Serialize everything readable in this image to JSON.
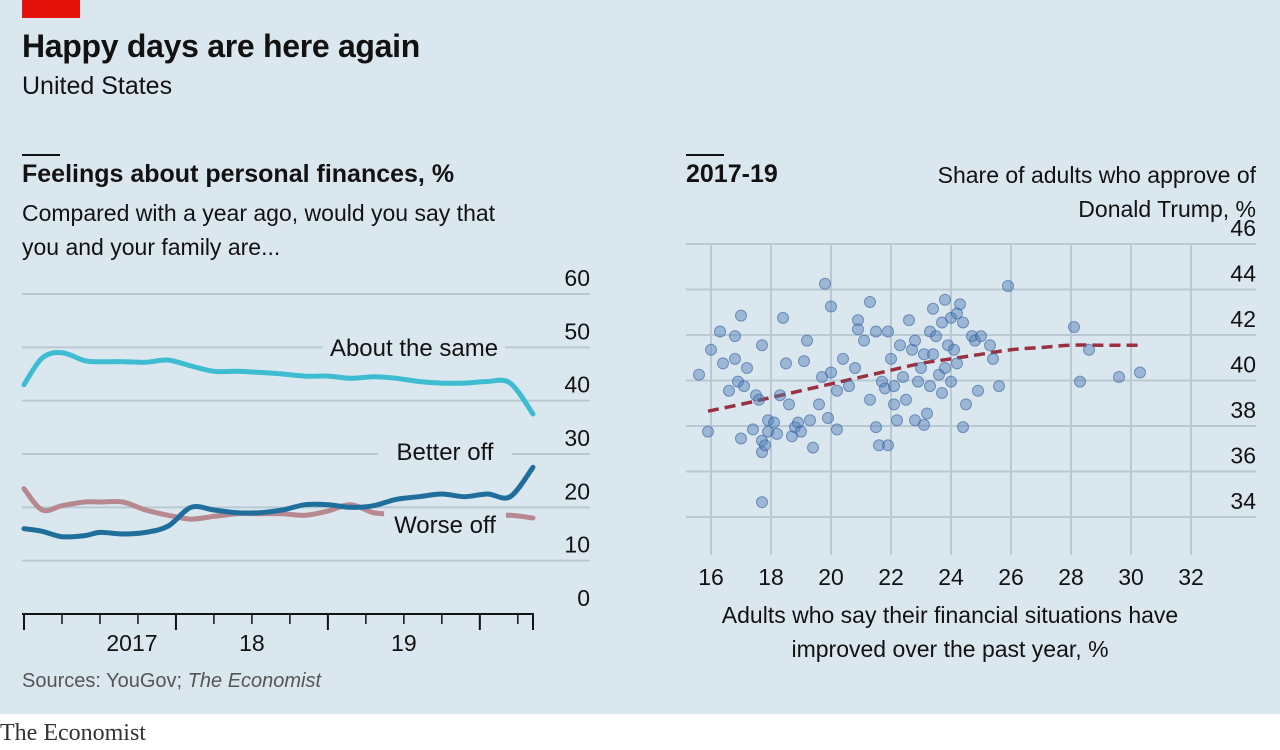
{
  "title": "Happy days are here again",
  "subtitle": "United States",
  "colors": {
    "background": "#dbe7ee",
    "accent": "#e3120b",
    "about_same": "#3ebcd2",
    "better_off": "#1f6e9c",
    "worse_off": "#b7888f",
    "scatter_point": "#4f7cb8",
    "trend": "#9b3040",
    "grid": "#b9c9d3"
  },
  "left_panel": {
    "heading": "Feelings about personal finances, %",
    "description": "Compared with a year ago, would you say that you and your family are..."
  },
  "right_panel": {
    "heading": "2017-19",
    "ylabel": "Share of adults who approve of Donald Trump, %",
    "xlabel": "Adults who say their financial situations have improved over the past year, %"
  },
  "source_prefix": "Sources: YouGov; ",
  "source_italic": "The Economist",
  "brand": "The Economist",
  "chart_data": [
    {
      "type": "line",
      "title": "Feelings about personal finances, %",
      "subtitle": "Compared with a year ago, would you say that you and your family are...",
      "ylim": [
        0,
        60
      ],
      "yticks": [
        "60",
        "50",
        "40",
        "30",
        "20",
        "10",
        "0"
      ],
      "xticks": [
        {
          "label": "2017",
          "x": 2017.25
        },
        {
          "label": "18",
          "x": 2018.0
        },
        {
          "label": "19",
          "x": 2019.0
        }
      ],
      "xlim": [
        2016.5,
        2019.85
      ],
      "grid": true,
      "series": [
        {
          "name": "About the same",
          "color": "#3ebcd2",
          "x": [
            2016.5,
            2016.62,
            2016.75,
            2016.9,
            2017.0,
            2017.15,
            2017.3,
            2017.45,
            2017.6,
            2017.75,
            2017.9,
            2018.05,
            2018.2,
            2018.35,
            2018.5,
            2018.65,
            2018.8,
            2018.95,
            2019.1,
            2019.25,
            2019.4,
            2019.55,
            2019.7,
            2019.85
          ],
          "values": [
            43,
            48,
            49,
            47.5,
            47.3,
            47.3,
            47.2,
            47.6,
            46.5,
            45.5,
            45.5,
            45.3,
            45,
            44.6,
            44.6,
            44.2,
            44.5,
            44.2,
            43.6,
            43.3,
            43.3,
            43.6,
            43.3,
            37.5
          ]
        },
        {
          "name": "Better off",
          "color": "#1f6e9c",
          "x": [
            2016.5,
            2016.62,
            2016.75,
            2016.9,
            2017.0,
            2017.15,
            2017.3,
            2017.45,
            2017.6,
            2017.75,
            2017.9,
            2018.05,
            2018.2,
            2018.35,
            2018.5,
            2018.65,
            2018.8,
            2018.95,
            2019.1,
            2019.25,
            2019.4,
            2019.55,
            2019.7,
            2019.85
          ],
          "values": [
            16,
            15.5,
            14.5,
            14.7,
            15.3,
            15,
            15.3,
            16.5,
            20,
            19.5,
            19,
            19,
            19.5,
            20.5,
            20.5,
            20,
            20.3,
            21.5,
            22,
            22.5,
            22,
            22.5,
            22,
            27.5
          ]
        },
        {
          "name": "Worse off",
          "color": "#b7888f",
          "x": [
            2016.5,
            2016.62,
            2016.75,
            2016.9,
            2017.0,
            2017.15,
            2017.3,
            2017.45,
            2017.6,
            2017.75,
            2017.9,
            2018.05,
            2018.2,
            2018.35,
            2018.5,
            2018.65,
            2018.8,
            2018.95,
            2019.1,
            2019.25,
            2019.4,
            2019.55,
            2019.7,
            2019.85
          ],
          "values": [
            23.5,
            19.5,
            20.3,
            21,
            21,
            21,
            19.5,
            18.5,
            17.8,
            18.3,
            18.8,
            18.8,
            18.8,
            18.5,
            19.3,
            20.5,
            19,
            18.7,
            18.3,
            18.2,
            18.2,
            18.3,
            18.5,
            18
          ]
        }
      ],
      "annotations": [
        "About the same",
        "Better off",
        "Worse off"
      ]
    },
    {
      "type": "scatter",
      "title": "2017-19",
      "xlabel": "Adults who say their financial situations have improved over the past year, %",
      "ylabel": "Share of adults who approve of Donald Trump, %",
      "xlim": [
        15,
        33
      ],
      "ylim": [
        33,
        46.5
      ],
      "xticks": [
        "16",
        "18",
        "20",
        "22",
        "24",
        "26",
        "28",
        "30",
        "32"
      ],
      "yticks": [
        "46",
        "44",
        "42",
        "40",
        "38",
        "36",
        "34"
      ],
      "grid": true,
      "trend": {
        "style": "dashed",
        "x": [
          15.9,
          17,
          18,
          19,
          20,
          21,
          22,
          23,
          24,
          25,
          26,
          27,
          28,
          29,
          30.3
        ],
        "y": [
          38.3,
          38.6,
          38.9,
          39.2,
          39.5,
          39.8,
          40.1,
          40.4,
          40.6,
          40.8,
          41.0,
          41.1,
          41.2,
          41.2,
          41.2
        ]
      },
      "points": [
        [
          15.6,
          39.9
        ],
        [
          16.0,
          41.0
        ],
        [
          15.9,
          37.4
        ],
        [
          16.3,
          41.8
        ],
        [
          16.4,
          40.4
        ],
        [
          16.6,
          39.2
        ],
        [
          16.8,
          41.6
        ],
        [
          16.8,
          40.6
        ],
        [
          17.0,
          42.5
        ],
        [
          16.9,
          39.6
        ],
        [
          17.0,
          37.1
        ],
        [
          17.1,
          39.4
        ],
        [
          17.2,
          40.2
        ],
        [
          17.4,
          37.5
        ],
        [
          17.5,
          39.0
        ],
        [
          17.7,
          41.2
        ],
        [
          17.6,
          38.8
        ],
        [
          17.7,
          37.0
        ],
        [
          17.9,
          37.4
        ],
        [
          17.9,
          37.9
        ],
        [
          17.7,
          36.5
        ],
        [
          17.8,
          36.8
        ],
        [
          17.7,
          34.3
        ],
        [
          18.2,
          37.3
        ],
        [
          18.1,
          37.8
        ],
        [
          18.3,
          39.0
        ],
        [
          18.4,
          42.4
        ],
        [
          18.6,
          38.6
        ],
        [
          18.5,
          40.4
        ],
        [
          18.7,
          37.2
        ],
        [
          18.8,
          37.6
        ],
        [
          18.9,
          37.8
        ],
        [
          19.0,
          37.4
        ],
        [
          19.1,
          40.5
        ],
        [
          19.2,
          41.4
        ],
        [
          19.3,
          37.9
        ],
        [
          19.4,
          36.7
        ],
        [
          19.6,
          38.6
        ],
        [
          19.7,
          39.8
        ],
        [
          19.8,
          43.9
        ],
        [
          20.0,
          40.0
        ],
        [
          19.9,
          38.0
        ],
        [
          20.0,
          42.9
        ],
        [
          20.2,
          39.2
        ],
        [
          20.2,
          37.5
        ],
        [
          20.4,
          40.6
        ],
        [
          20.6,
          39.4
        ],
        [
          20.8,
          40.2
        ],
        [
          20.9,
          42.3
        ],
        [
          20.9,
          41.9
        ],
        [
          21.1,
          41.4
        ],
        [
          21.3,
          43.1
        ],
        [
          21.3,
          38.8
        ],
        [
          21.5,
          41.8
        ],
        [
          21.5,
          37.6
        ],
        [
          21.6,
          36.8
        ],
        [
          21.7,
          39.6
        ],
        [
          21.8,
          39.3
        ],
        [
          21.9,
          41.8
        ],
        [
          21.9,
          36.8
        ],
        [
          22.0,
          40.6
        ],
        [
          22.1,
          39.4
        ],
        [
          22.1,
          38.6
        ],
        [
          22.2,
          37.9
        ],
        [
          22.3,
          41.2
        ],
        [
          22.4,
          39.8
        ],
        [
          22.5,
          38.8
        ],
        [
          22.6,
          42.3
        ],
        [
          22.7,
          41.0
        ],
        [
          22.8,
          41.4
        ],
        [
          22.8,
          37.9
        ],
        [
          22.9,
          39.6
        ],
        [
          23.0,
          40.2
        ],
        [
          23.1,
          40.8
        ],
        [
          23.1,
          37.7
        ],
        [
          23.2,
          38.2
        ],
        [
          23.3,
          41.8
        ],
        [
          23.3,
          39.4
        ],
        [
          23.4,
          42.8
        ],
        [
          23.4,
          40.8
        ],
        [
          23.5,
          41.6
        ],
        [
          23.6,
          39.9
        ],
        [
          23.7,
          39.1
        ],
        [
          23.7,
          42.2
        ],
        [
          23.8,
          43.2
        ],
        [
          23.8,
          40.2
        ],
        [
          23.9,
          41.2
        ],
        [
          24.0,
          42.4
        ],
        [
          24.0,
          39.6
        ],
        [
          24.1,
          41.0
        ],
        [
          24.2,
          42.6
        ],
        [
          24.2,
          40.4
        ],
        [
          24.3,
          43.0
        ],
        [
          24.4,
          37.6
        ],
        [
          24.4,
          42.2
        ],
        [
          24.5,
          38.6
        ],
        [
          24.7,
          41.6
        ],
        [
          24.8,
          41.4
        ],
        [
          24.9,
          39.2
        ],
        [
          25.0,
          41.6
        ],
        [
          25.3,
          41.2
        ],
        [
          25.4,
          40.6
        ],
        [
          25.6,
          39.4
        ],
        [
          25.9,
          43.8
        ],
        [
          28.1,
          42.0
        ],
        [
          28.3,
          39.6
        ],
        [
          28.6,
          41.0
        ],
        [
          29.6,
          39.8
        ],
        [
          30.3,
          40.0
        ]
      ]
    }
  ]
}
